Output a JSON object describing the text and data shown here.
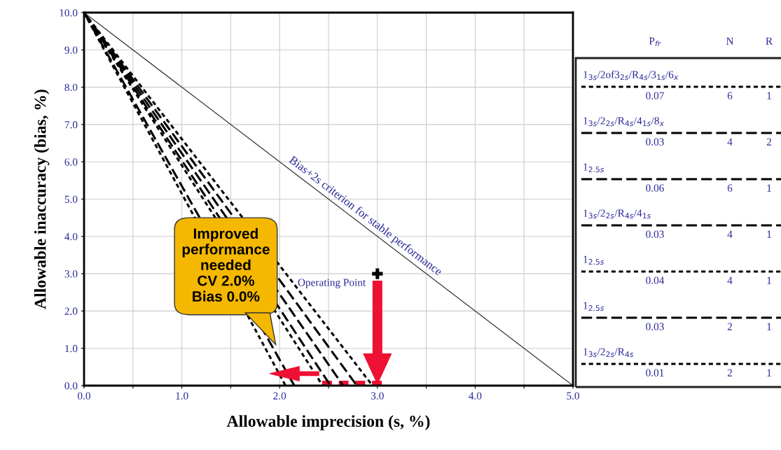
{
  "chart_data": {
    "type": "line",
    "xlabel": "Allowable imprecision (s, %)",
    "ylabel": "Allowable inaccuracy (bias, %)",
    "xlim": [
      0.0,
      5.0
    ],
    "ylim": [
      0.0,
      10.0
    ],
    "xticks": [
      {
        "value": 0,
        "label": "0.0"
      },
      {
        "value": 0.5,
        "label": null
      },
      {
        "value": 1,
        "label": "1.0"
      },
      {
        "value": 1.5,
        "label": null
      },
      {
        "value": 2,
        "label": "2.0"
      },
      {
        "value": 2.5,
        "label": null
      },
      {
        "value": 3,
        "label": "3.0"
      },
      {
        "value": 3.5,
        "label": null
      },
      {
        "value": 4,
        "label": "4.0"
      },
      {
        "value": 4.5,
        "label": null
      },
      {
        "value": 5,
        "label": "5.0"
      }
    ],
    "yticks": [
      {
        "value": 0,
        "label": "0.0"
      },
      {
        "value": 1,
        "label": "1.0"
      },
      {
        "value": 2,
        "label": "2.0"
      },
      {
        "value": 3,
        "label": "3.0"
      },
      {
        "value": 4,
        "label": "4.0"
      },
      {
        "value": 5,
        "label": "5.0"
      },
      {
        "value": 6,
        "label": "6.0"
      },
      {
        "value": 7,
        "label": "7.0"
      },
      {
        "value": 8,
        "label": "8.0"
      },
      {
        "value": 9,
        "label": "9.0"
      },
      {
        "value": 10,
        "label": "10.0"
      }
    ],
    "grid": true,
    "legend": "right",
    "series": [
      {
        "name": "1$_{3s}$/2of3$_{2s}$/R$_{4s}$/3$_{1s}$/6$_{x}$",
        "color": "#000000",
        "line_style": "dotted",
        "x": [
          0,
          2.95
        ],
        "values": [
          10,
          0
        ]
      },
      {
        "name": "1$_{3s}$/2$_{2s}$/R$_{4s}$/4$_{1s}$/8$_{x}$",
        "color": "#000000",
        "line_style": "dashed",
        "x": [
          0,
          2.79
        ],
        "values": [
          10,
          0
        ]
      },
      {
        "name": "1$_{2.5s}$",
        "color": "#000000",
        "line_style": "dashed",
        "x": [
          0,
          2.65
        ],
        "values": [
          10,
          0
        ]
      },
      {
        "name": "1$_{3s}$/2$_{2s}$/R$_{4s}$/4$_{1s}$",
        "color": "#000000",
        "line_style": "dashed",
        "x": [
          0,
          2.52
        ],
        "values": [
          10,
          0
        ]
      },
      {
        "name": "1$_{2.5s}$",
        "color": "#000000",
        "line_style": "dotted",
        "x": [
          0,
          2.44
        ],
        "values": [
          10,
          0
        ]
      },
      {
        "name": "1$_{2.5s}$",
        "color": "#000000",
        "line_style": "dashed",
        "x": [
          0,
          2.15
        ],
        "values": [
          10,
          0
        ]
      },
      {
        "name": "1$_{3s}$/2$_{2s}$/R$_{4s}$",
        "color": "#000000",
        "line_style": "dotted",
        "x": [
          0,
          2.06
        ],
        "values": [
          10,
          0
        ]
      },
      {
        "color": "#333333",
        "line_style": "solid",
        "x": [
          0,
          5.0
        ],
        "values": [
          10,
          0
        ]
      },
      {
        "type": "scatter",
        "color": "#000000",
        "marker": "cross",
        "x": [
          3.0
        ],
        "values": [
          3.0
        ]
      }
    ],
    "annotations": [
      "Bias+2s criterion for stable performance",
      {
        "text": "Operating Point",
        "x": 3.0,
        "y": 3.0
      },
      "Improved\nperformance\nneeded\nCV 2.0%\nBias 0.0%",
      "P$_{fr}$",
      "N",
      "R",
      "0.07",
      "6",
      "1",
      "0.03",
      "4",
      "2",
      "0.06",
      "6",
      "1",
      "0.03",
      "4",
      "1",
      "0.04",
      "4",
      "1",
      "0.03",
      "2",
      "1",
      "0.01",
      "2",
      "1"
    ]
  }
}
